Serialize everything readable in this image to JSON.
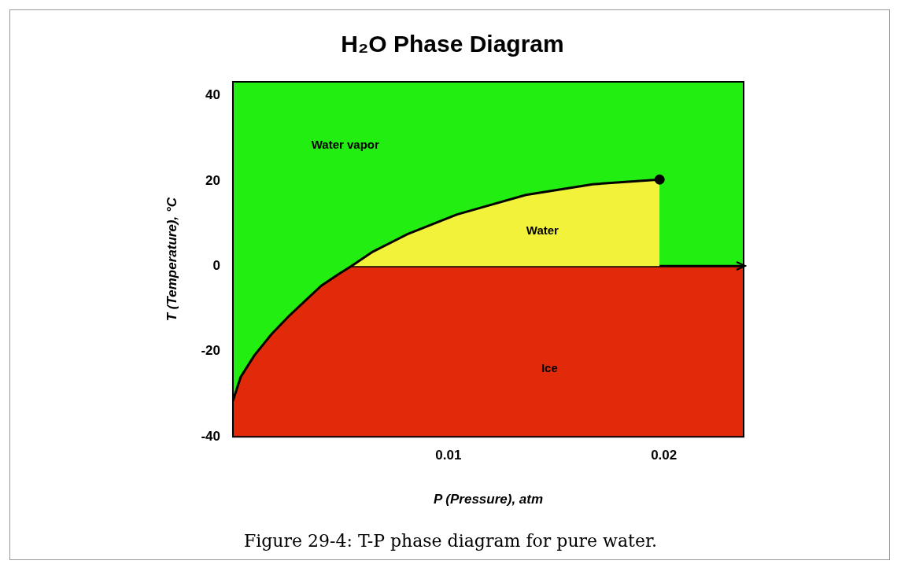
{
  "chart_data": {
    "type": "area",
    "title": "H₂O Phase Diagram",
    "xlabel": "P (Pressure), atm",
    "ylabel": "T (Temperature), °C",
    "xlim": [
      0,
      0.0237
    ],
    "xticks": [
      0.01,
      0.02
    ],
    "ylim": [
      -40,
      43.2
    ],
    "yticks": [
      40,
      20,
      0,
      -20,
      -40
    ],
    "legend": false,
    "bands": [
      {
        "axis": "y",
        "from": -40,
        "to": 43.2,
        "color": "#22ee11",
        "label": "Water vapor"
      }
    ],
    "series": [
      {
        "name": "Ice",
        "color": "#e02a0a",
        "marker": "none",
        "x": [
          0,
          0,
          0.00036,
          0.001,
          0.0018,
          0.0026,
          0.0034,
          0.0041,
          0.0049,
          0.0055,
          0.0237,
          0.0237
        ],
        "values": [
          -40,
          -31.6,
          -26,
          -20.9,
          -15.9,
          -11.7,
          -7.9,
          -4.6,
          -1.9,
          0,
          0,
          -40
        ]
      },
      {
        "name": "Water",
        "color": "#f2f23a",
        "marker": "none",
        "x": [
          0.0055,
          0.0065,
          0.0081,
          0.0104,
          0.0136,
          0.0167,
          0.0198,
          0.0198
        ],
        "values": [
          0,
          3.4,
          7.5,
          12.1,
          16.7,
          19.2,
          20.3,
          0
        ]
      },
      {
        "type": "scatter",
        "color": "#000000",
        "marker": "circle",
        "x": [
          0.0198
        ],
        "values": [
          20.3
        ]
      }
    ],
    "annotations": [
      "Figure 29-4:   T-P phase diagram for pure water."
    ]
  }
}
